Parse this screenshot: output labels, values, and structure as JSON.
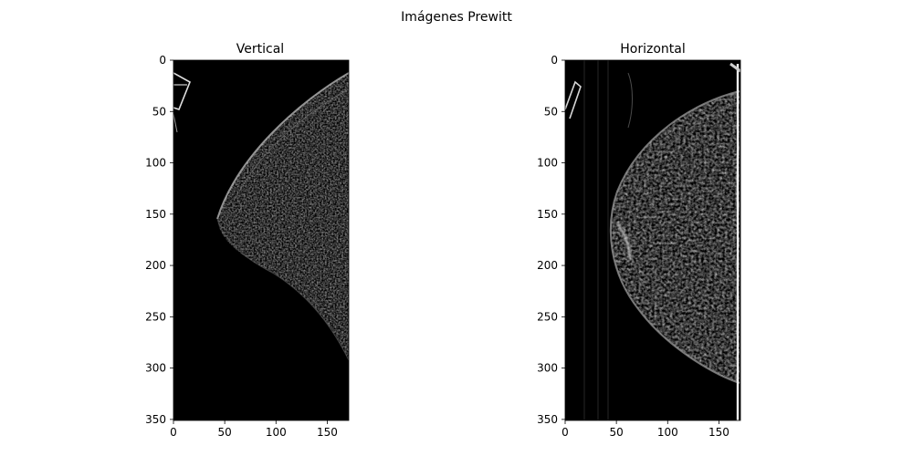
{
  "figure": {
    "suptitle": "Imágenes Prewitt"
  },
  "chart_data": [
    {
      "type": "heatmap",
      "title": "Vertical",
      "colormap": "gray",
      "background_color": "#000000",
      "xlim": [
        0,
        171
      ],
      "ylim": [
        351,
        0
      ],
      "x_ticks": [
        0,
        50,
        100,
        150
      ],
      "y_ticks": [
        0,
        50,
        100,
        150,
        200,
        250,
        300,
        350
      ],
      "x_tick_labels": [
        "0",
        "50",
        "100",
        "150"
      ],
      "y_tick_labels": [
        "0",
        "50",
        "100",
        "150",
        "200",
        "250",
        "300",
        "350"
      ],
      "xlabel": "",
      "ylabel": ""
    },
    {
      "type": "heatmap",
      "title": "Horizontal",
      "colormap": "gray",
      "background_color": "#000000",
      "xlim": [
        0,
        171
      ],
      "ylim": [
        351,
        0
      ],
      "x_ticks": [
        0,
        50,
        100,
        150
      ],
      "y_ticks": [
        0,
        50,
        100,
        150,
        200,
        250,
        300,
        350
      ],
      "x_tick_labels": [
        "0",
        "50",
        "100",
        "150"
      ],
      "y_tick_labels": [
        "0",
        "50",
        "100",
        "150",
        "200",
        "250",
        "300",
        "350"
      ],
      "xlabel": "",
      "ylabel": ""
    }
  ]
}
